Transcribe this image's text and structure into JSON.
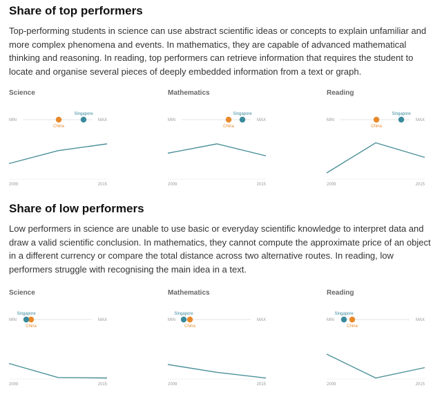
{
  "sections": [
    {
      "title": "Share of top performers",
      "description": "Top-performing students in science can use abstract scientific ideas or concepts to explain unfamiliar and more complex phenomena and events. In mathematics, they are capable of advanced mathematical thinking and reasoning. In reading, top performers can retrieve information that requires the student to locate and organise several pieces of deeply embedded information from a text or graph."
    },
    {
      "title": "Share of low performers",
      "description": "Low performers in science are unable to use basic or everyday scientific knowledge to interpret data and draw a valid scientific conclusion. In mathematics, they cannot compute the approximate price of an object in a different currency or compare the total distance across two alternative routes. In reading, low performers struggle with recognising the main idea in a text."
    }
  ],
  "labels": {
    "min": "MIN",
    "max": "MAX",
    "singapore": "Singapore",
    "china": "China"
  },
  "colors": {
    "singapore": "#3a8a9c",
    "china": "#e8892a",
    "line": "#4a9098",
    "track": "#e3e3e3"
  },
  "chart_data": [
    {
      "type": "line",
      "section": "top",
      "title": "Science",
      "x": [
        2009,
        2012,
        2015
      ],
      "xlabels": [
        "2009",
        "2015"
      ],
      "line_values": [
        0.3,
        0.55,
        0.68
      ],
      "ylim": [
        0,
        1
      ],
      "range_positions": {
        "Singapore": 0.88,
        "China": 0.52
      }
    },
    {
      "type": "line",
      "section": "top",
      "title": "Mathematics",
      "x": [
        2009,
        2012,
        2015
      ],
      "xlabels": [
        "2009",
        "2015"
      ],
      "line_values": [
        0.5,
        0.68,
        0.45
      ],
      "ylim": [
        0,
        1
      ],
      "range_positions": {
        "Singapore": 0.88,
        "China": 0.68
      }
    },
    {
      "type": "line",
      "section": "top",
      "title": "Reading",
      "x": [
        2009,
        2012,
        2015
      ],
      "xlabels": [
        "2009",
        "2015"
      ],
      "line_values": [
        0.12,
        0.7,
        0.42
      ],
      "ylim": [
        0,
        1
      ],
      "range_positions": {
        "Singapore": 0.88,
        "China": 0.52
      }
    },
    {
      "type": "line",
      "section": "low",
      "title": "Science",
      "x": [
        2009,
        2012,
        2015
      ],
      "xlabels": [
        "2009",
        "2015"
      ],
      "line_values": [
        0.3,
        0.03,
        0.02
      ],
      "ylim": [
        0,
        1
      ],
      "range_positions": {
        "Singapore": 0.05,
        "China": 0.12
      }
    },
    {
      "type": "line",
      "section": "low",
      "title": "Mathematics",
      "x": [
        2009,
        2012,
        2015
      ],
      "xlabels": [
        "2009",
        "2015"
      ],
      "line_values": [
        0.28,
        0.13,
        0.02
      ],
      "ylim": [
        0,
        1
      ],
      "range_positions": {
        "Singapore": 0.03,
        "China": 0.12
      }
    },
    {
      "type": "line",
      "section": "low",
      "title": "Reading",
      "x": [
        2009,
        2012,
        2015
      ],
      "xlabels": [
        "2009",
        "2015"
      ],
      "line_values": [
        0.48,
        0.02,
        0.22
      ],
      "ylim": [
        0,
        1
      ],
      "range_positions": {
        "Singapore": 0.05,
        "China": 0.17
      }
    }
  ]
}
